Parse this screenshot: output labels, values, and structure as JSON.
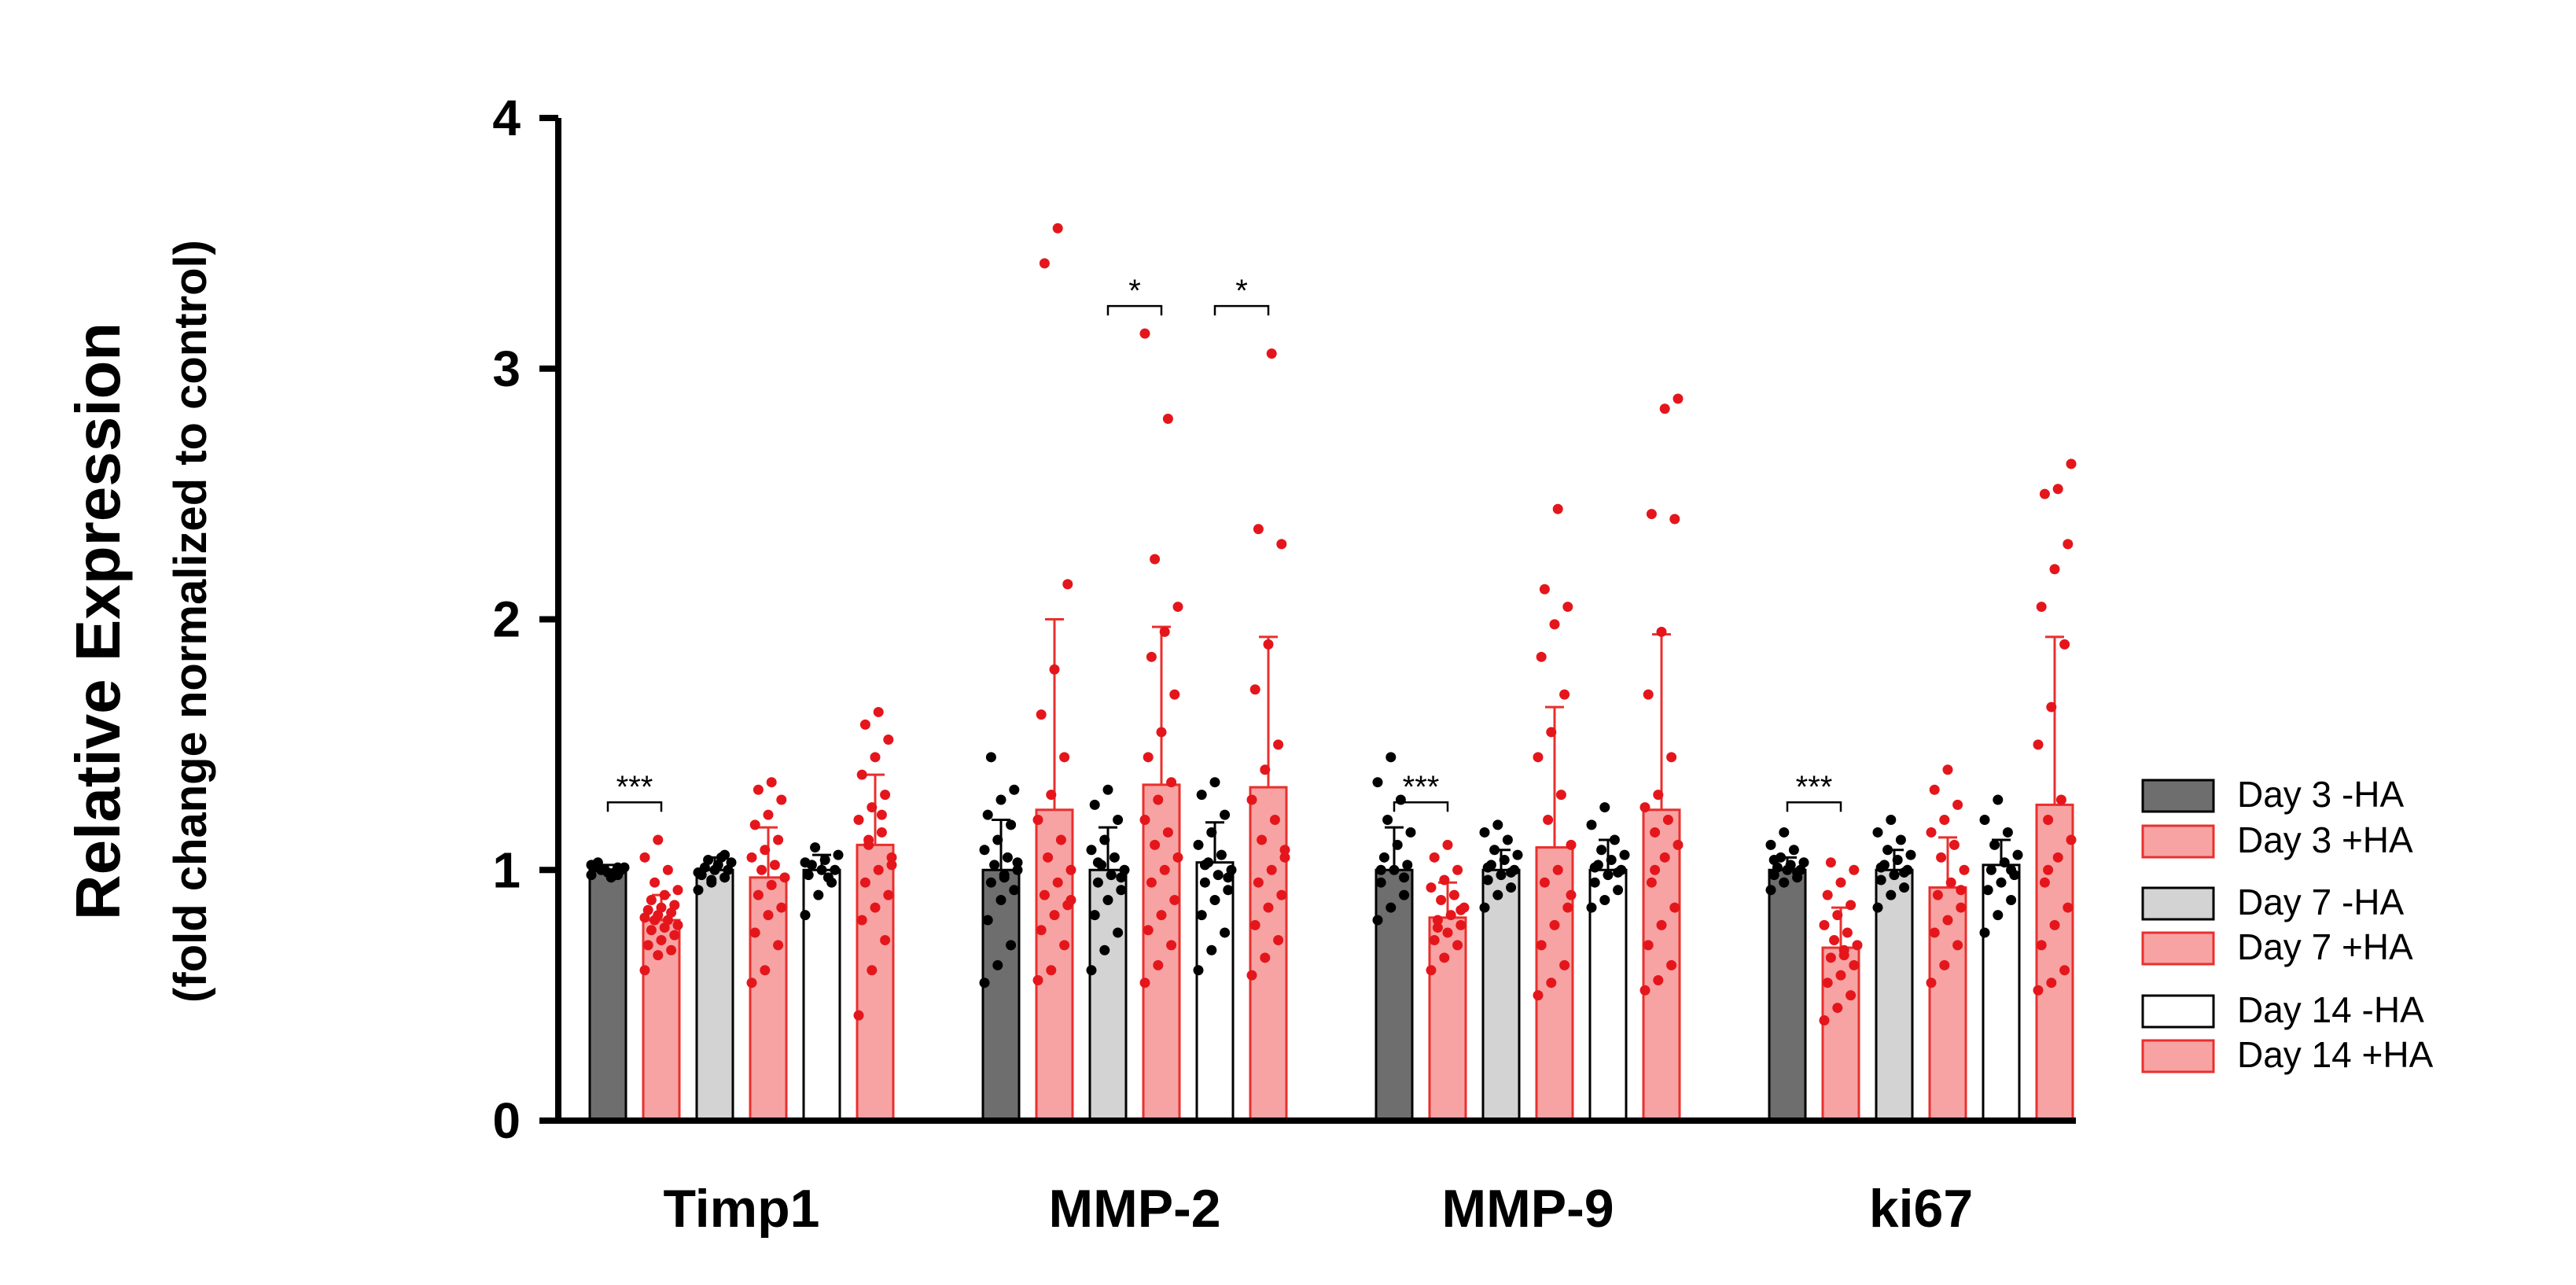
{
  "chart_data": {
    "type": "bar",
    "title": "",
    "ylabel": "Relative Expression",
    "ylabel_sub": "(fold change normalized to control)",
    "xlabel": "",
    "ylim": [
      0,
      4
    ],
    "yticks": [
      "0",
      "1",
      "2",
      "3",
      "4"
    ],
    "categories": [
      "Timp1",
      "MMP-2",
      "MMP-9",
      "ki67"
    ],
    "colors": {
      "dark_gray": "#6e6e6e",
      "light_gray": "#d3d3d3",
      "white": "#ffffff",
      "pink": "#f7a3a3",
      "red_edge": "#e8302e",
      "red_dot": "#e4161c",
      "black_dot": "#000000"
    },
    "series": [
      {
        "name": "Day 3 -HA",
        "fill": "dark_gray",
        "edge": "#000000",
        "dot": "black_dot",
        "values": [
          1.0,
          1.0,
          1.0,
          1.0
        ],
        "errors": [
          0.02,
          0.2,
          0.17,
          0.05
        ]
      },
      {
        "name": "Day 3 +HA",
        "fill": "pink",
        "edge": "red_edge",
        "dot": "red_dot",
        "values": [
          0.8,
          1.24,
          0.81,
          0.69
        ],
        "errors": [
          0.1,
          0.76,
          0.14,
          0.16
        ]
      },
      {
        "name": "Day 7 -HA",
        "fill": "light_gray",
        "edge": "#000000",
        "dot": "black_dot",
        "values": [
          1.0,
          1.0,
          1.0,
          1.0
        ],
        "errors": [
          0.05,
          0.17,
          0.08,
          0.08
        ]
      },
      {
        "name": "Day 7 +HA",
        "fill": "pink",
        "edge": "red_edge",
        "dot": "red_dot",
        "values": [
          0.97,
          1.34,
          1.09,
          0.93
        ],
        "errors": [
          0.2,
          0.63,
          0.56,
          0.2
        ]
      },
      {
        "name": "Day 14 -HA",
        "fill": "white",
        "edge": "#000000",
        "dot": "black_dot",
        "values": [
          1.0,
          1.03,
          1.0,
          1.02
        ],
        "errors": [
          0.06,
          0.16,
          0.12,
          0.1
        ]
      },
      {
        "name": "Day 14 +HA",
        "fill": "pink",
        "edge": "red_edge",
        "dot": "red_dot",
        "values": [
          1.1,
          1.33,
          1.24,
          1.26
        ],
        "errors": [
          0.28,
          0.6,
          0.7,
          0.67
        ]
      }
    ],
    "points": [
      [
        [
          0.98,
          1.0,
          1.01,
          1.02,
          0.99,
          1.0,
          1.03,
          0.97,
          1.01,
          1.0,
          0.99,
          1.02,
          1.0,
          0.98,
          1.01
        ],
        [
          0.6,
          0.66,
          0.68,
          0.7,
          0.72,
          0.74,
          0.76,
          0.77,
          0.78,
          0.8,
          0.8,
          0.81,
          0.82,
          0.83,
          0.84,
          0.85,
          0.86,
          0.88,
          0.9,
          0.92,
          0.95,
          1.0,
          1.05,
          1.12
        ],
        [
          0.92,
          0.95,
          0.97,
          0.98,
          1.0,
          1.0,
          1.01,
          1.02,
          1.03,
          1.04,
          1.05,
          0.99,
          0.96,
          1.06
        ],
        [
          0.55,
          0.6,
          0.7,
          0.75,
          0.82,
          0.85,
          0.9,
          0.94,
          0.97,
          1.0,
          1.02,
          1.05,
          1.08,
          1.12,
          1.18,
          1.22,
          1.28,
          1.32,
          1.35
        ],
        [
          0.82,
          0.9,
          0.95,
          0.98,
          1.0,
          1.0,
          1.02,
          1.04,
          1.06,
          1.09,
          0.97,
          1.03
        ],
        [
          0.42,
          0.6,
          0.72,
          0.8,
          0.85,
          0.9,
          0.95,
          1.0,
          1.05,
          1.1,
          1.15,
          1.2,
          1.25,
          1.3,
          1.38,
          1.45,
          1.52,
          1.58,
          1.63,
          1.02,
          1.12,
          1.22
        ]
      ],
      [
        [
          0.55,
          0.62,
          0.7,
          0.8,
          0.88,
          0.92,
          0.95,
          0.98,
          1.0,
          1.02,
          1.05,
          1.08,
          1.12,
          1.18,
          1.22,
          1.28,
          1.32,
          1.45,
          0.97,
          1.03
        ],
        [
          0.56,
          0.6,
          0.7,
          0.76,
          0.82,
          0.86,
          0.9,
          0.95,
          1.0,
          1.05,
          1.12,
          1.2,
          1.3,
          1.45,
          1.62,
          1.8,
          2.14,
          3.42,
          3.56,
          0.88
        ],
        [
          0.6,
          0.68,
          0.75,
          0.82,
          0.88,
          0.92,
          0.95,
          0.98,
          1.0,
          1.02,
          1.05,
          1.08,
          1.12,
          1.2,
          1.26,
          1.32,
          0.97,
          1.03
        ],
        [
          0.55,
          0.62,
          0.7,
          0.76,
          0.82,
          0.88,
          0.95,
          1.0,
          1.05,
          1.1,
          1.15,
          1.2,
          1.28,
          1.35,
          1.45,
          1.55,
          1.7,
          1.85,
          1.95,
          2.05,
          2.24,
          2.8,
          3.14
        ],
        [
          0.6,
          0.68,
          0.75,
          0.82,
          0.88,
          0.92,
          0.95,
          0.98,
          1.0,
          1.03,
          1.06,
          1.1,
          1.15,
          1.22,
          1.3,
          1.35,
          0.97,
          1.02
        ],
        [
          0.58,
          0.65,
          0.72,
          0.78,
          0.85,
          0.9,
          0.95,
          1.0,
          1.05,
          1.12,
          1.2,
          1.28,
          1.4,
          1.5,
          1.72,
          1.9,
          2.3,
          2.36,
          3.06,
          1.08
        ]
      ],
      [
        [
          0.8,
          0.85,
          0.9,
          0.95,
          1.0,
          1.02,
          1.05,
          1.1,
          1.15,
          1.2,
          1.28,
          1.35,
          1.45,
          0.97,
          1.0
        ],
        [
          0.6,
          0.65,
          0.7,
          0.72,
          0.75,
          0.78,
          0.8,
          0.82,
          0.85,
          0.88,
          0.9,
          0.93,
          0.96,
          1.0,
          1.05,
          1.1,
          0.84,
          0.77
        ],
        [
          0.85,
          0.9,
          0.93,
          0.96,
          0.98,
          1.0,
          1.02,
          1.04,
          1.06,
          1.08,
          1.12,
          1.15,
          1.18,
          0.99,
          1.01
        ],
        [
          0.5,
          0.55,
          0.62,
          0.7,
          0.78,
          0.85,
          0.95,
          1.0,
          1.1,
          1.2,
          1.3,
          1.45,
          1.55,
          1.7,
          1.85,
          1.98,
          2.05,
          2.12,
          2.44,
          0.9
        ],
        [
          0.85,
          0.88,
          0.92,
          0.95,
          0.98,
          1.0,
          1.02,
          1.04,
          1.06,
          1.08,
          1.12,
          1.18,
          1.25,
          0.99,
          1.01
        ],
        [
          0.52,
          0.56,
          0.62,
          0.7,
          0.78,
          0.85,
          0.95,
          1.05,
          1.1,
          1.15,
          1.2,
          1.25,
          1.3,
          1.45,
          1.7,
          1.95,
          2.4,
          2.42,
          2.84,
          2.88,
          1.0
        ]
      ],
      [
        [
          0.92,
          0.95,
          0.97,
          0.98,
          1.0,
          1.0,
          1.01,
          1.02,
          1.03,
          1.05,
          1.08,
          1.1,
          1.15,
          0.99,
          1.04
        ],
        [
          0.4,
          0.45,
          0.5,
          0.55,
          0.58,
          0.62,
          0.65,
          0.68,
          0.7,
          0.72,
          0.75,
          0.78,
          0.82,
          0.86,
          0.9,
          0.95,
          1.0,
          1.03,
          0.66
        ],
        [
          0.85,
          0.9,
          0.93,
          0.96,
          0.98,
          1.0,
          1.02,
          1.04,
          1.06,
          1.08,
          1.12,
          1.15,
          1.2,
          0.99,
          1.01
        ],
        [
          0.55,
          0.62,
          0.7,
          0.75,
          0.8,
          0.85,
          0.9,
          0.95,
          1.0,
          1.05,
          1.1,
          1.15,
          1.2,
          1.26,
          1.32,
          1.4,
          0.92
        ],
        [
          0.75,
          0.82,
          0.88,
          0.92,
          0.95,
          0.98,
          1.0,
          1.03,
          1.06,
          1.1,
          1.15,
          1.2,
          1.28,
          1.0
        ],
        [
          0.52,
          0.55,
          0.6,
          0.7,
          0.78,
          0.85,
          0.95,
          1.05,
          1.12,
          1.2,
          1.28,
          1.5,
          1.65,
          1.9,
          2.05,
          2.2,
          2.3,
          2.5,
          2.52,
          2.62,
          1.0
        ]
      ]
    ],
    "significance": [
      {
        "category": 0,
        "from": 0,
        "to": 1,
        "y": 1.27,
        "label": "***"
      },
      {
        "category": 1,
        "from": 2,
        "to": 3,
        "y": 3.25,
        "label": "*"
      },
      {
        "category": 1,
        "from": 4,
        "to": 5,
        "y": 3.25,
        "label": "*"
      },
      {
        "category": 2,
        "from": 0,
        "to": 1,
        "y": 1.27,
        "label": "***"
      },
      {
        "category": 3,
        "from": 0,
        "to": 1,
        "y": 1.27,
        "label": "***"
      }
    ],
    "legend": {
      "placement": "right",
      "entries": [
        {
          "label": "Day 3 -HA",
          "fill": "dark_gray",
          "edge": "#000000"
        },
        {
          "label": "Day 3 +HA",
          "fill": "pink",
          "edge": "red_edge"
        },
        {
          "label": "Day 7 -HA",
          "fill": "light_gray",
          "edge": "#000000"
        },
        {
          "label": "Day 7 +HA",
          "fill": "pink",
          "edge": "red_edge"
        },
        {
          "label": "Day 14 -HA",
          "fill": "white",
          "edge": "#000000"
        },
        {
          "label": "Day 14 +HA",
          "fill": "pink",
          "edge": "red_edge"
        }
      ]
    }
  }
}
